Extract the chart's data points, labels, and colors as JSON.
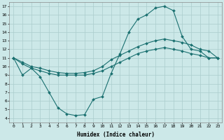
{
  "xlabel": "Humidex (Indice chaleur)",
  "bg_color": "#cce8e8",
  "grid_color": "#aacccc",
  "line_color": "#1a7070",
  "xlim": [
    -0.5,
    23.5
  ],
  "ylim": [
    3.5,
    17.5
  ],
  "xticks": [
    0,
    1,
    2,
    3,
    4,
    5,
    6,
    7,
    8,
    9,
    10,
    11,
    12,
    13,
    14,
    15,
    16,
    17,
    18,
    19,
    20,
    21,
    22,
    23
  ],
  "yticks": [
    4,
    5,
    6,
    7,
    8,
    9,
    10,
    11,
    12,
    13,
    14,
    15,
    16,
    17
  ],
  "line1_x": [
    0,
    1,
    2,
    3,
    4,
    5,
    6,
    7,
    8,
    9,
    10,
    11,
    12,
    13,
    14,
    15,
    16,
    17,
    18,
    19,
    20,
    21,
    22,
    23
  ],
  "line1_y": [
    11.0,
    9.0,
    9.8,
    8.8,
    7.0,
    5.2,
    4.5,
    4.3,
    4.4,
    6.2,
    6.5,
    9.2,
    11.5,
    14.0,
    15.5,
    16.0,
    16.8,
    17.0,
    16.5,
    13.5,
    12.0,
    11.8,
    11.0,
    11.0
  ],
  "line2_x": [
    0,
    1,
    2,
    3,
    4,
    5,
    6,
    7,
    8,
    9,
    10,
    11,
    12,
    13,
    14,
    15,
    16,
    17,
    18,
    19,
    20,
    21,
    22,
    23
  ],
  "line2_y": [
    11.0,
    10.5,
    10.0,
    9.8,
    9.5,
    9.3,
    9.2,
    9.2,
    9.3,
    9.5,
    10.0,
    10.8,
    11.3,
    11.8,
    12.3,
    12.7,
    13.0,
    13.2,
    13.0,
    12.8,
    12.5,
    12.0,
    11.8,
    11.0
  ],
  "line3_x": [
    0,
    1,
    2,
    3,
    4,
    5,
    6,
    7,
    8,
    9,
    10,
    11,
    12,
    13,
    14,
    15,
    16,
    17,
    18,
    19,
    20,
    21,
    22,
    23
  ],
  "line3_y": [
    11.0,
    10.3,
    9.8,
    9.5,
    9.2,
    9.0,
    9.0,
    9.0,
    9.0,
    9.2,
    9.5,
    10.0,
    10.5,
    11.0,
    11.5,
    11.8,
    12.0,
    12.2,
    12.0,
    11.8,
    11.5,
    11.3,
    11.0,
    11.0
  ]
}
